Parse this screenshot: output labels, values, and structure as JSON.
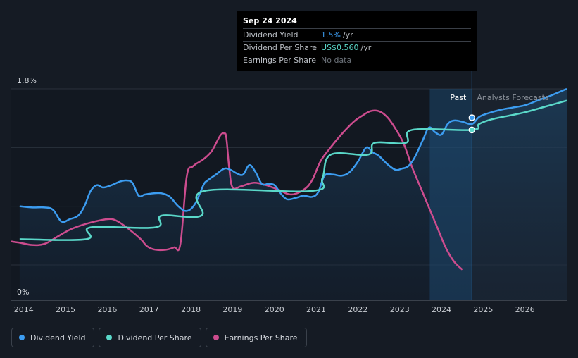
{
  "tooltip": {
    "date": "Sep 24 2024",
    "rows": [
      {
        "label": "Dividend Yield",
        "value": "1.5%",
        "unit": "/yr"
      },
      {
        "label": "Dividend Per Share",
        "value": "US$0.560",
        "unit": "/yr"
      },
      {
        "label": "Earnings Per Share",
        "value": "No data",
        "unit": ""
      }
    ]
  },
  "regions": {
    "past": "Past",
    "forecast": "Analysts Forecasts"
  },
  "legend": [
    {
      "label": "Dividend Yield",
      "color": "#3c9cf0"
    },
    {
      "label": "Dividend Per Share",
      "color": "#5ad8c9"
    },
    {
      "label": "Earnings Per Share",
      "color": "#cc4c8e"
    }
  ],
  "chart_data": {
    "type": "line",
    "title": "",
    "xlabel": "",
    "ylabel": "",
    "xlim": [
      2013.7,
      2027.0
    ],
    "ylim": [
      0,
      1.8
    ],
    "y_tick_labels": [
      "0%",
      "1.8%"
    ],
    "x_ticks": [
      2014,
      2015,
      2016,
      2017,
      2018,
      2019,
      2020,
      2021,
      2022,
      2023,
      2024,
      2025,
      2026
    ],
    "x_tick_labels": [
      "2014",
      "2015",
      "2016",
      "2017",
      "2018",
      "2019",
      "2020",
      "2021",
      "2022",
      "2023",
      "2024",
      "2025",
      "2026"
    ],
    "past_start": 2023.72,
    "present": 2024.73,
    "colors": {
      "yield": "#3c9cf0",
      "dps": "#5ad8c9",
      "eps": "#cc4c8e"
    },
    "series": [
      {
        "name": "Dividend Yield",
        "key": "yield",
        "x": [
          2013.9,
          2014.2,
          2014.5,
          2014.7,
          2014.9,
          2015.1,
          2015.3,
          2015.45,
          2015.6,
          2015.75,
          2015.9,
          2016.1,
          2016.3,
          2016.45,
          2016.6,
          2016.75,
          2016.9,
          2017.1,
          2017.3,
          2017.5,
          2017.7,
          2017.9,
          2018.1,
          2018.3,
          2018.4,
          2018.6,
          2018.8,
          2018.95,
          2019.1,
          2019.25,
          2019.4,
          2019.55,
          2019.7,
          2019.85,
          2020.0,
          2020.15,
          2020.3,
          2020.5,
          2020.7,
          2020.9,
          2021.05,
          2021.2,
          2021.4,
          2021.6,
          2021.8,
          2022.0,
          2022.2,
          2022.35,
          2022.5,
          2022.7,
          2022.9,
          2023.05,
          2023.2,
          2023.35,
          2023.55,
          2023.7,
          2023.85,
          2024.0,
          2024.15,
          2024.3,
          2024.5,
          2024.73,
          2024.9,
          2025.1,
          2025.4,
          2025.7,
          2026.0,
          2026.3,
          2026.6,
          2027.0
        ],
        "y": [
          0.8,
          0.79,
          0.79,
          0.77,
          0.67,
          0.69,
          0.72,
          0.8,
          0.93,
          0.98,
          0.96,
          0.98,
          1.01,
          1.02,
          1.0,
          0.89,
          0.9,
          0.91,
          0.91,
          0.88,
          0.8,
          0.76,
          0.82,
          0.98,
          1.02,
          1.07,
          1.12,
          1.11,
          1.08,
          1.07,
          1.15,
          1.09,
          0.99,
          0.99,
          0.98,
          0.91,
          0.86,
          0.87,
          0.89,
          0.88,
          0.92,
          1.06,
          1.07,
          1.06,
          1.09,
          1.18,
          1.3,
          1.26,
          1.23,
          1.16,
          1.11,
          1.12,
          1.14,
          1.21,
          1.36,
          1.47,
          1.43,
          1.41,
          1.5,
          1.53,
          1.52,
          1.5,
          1.56,
          1.59,
          1.62,
          1.64,
          1.66,
          1.7,
          1.74,
          1.8
        ]
      },
      {
        "name": "Dividend Per Share",
        "key": "dps",
        "x": [
          2013.9,
          2015.5,
          2015.6,
          2017.15,
          2017.3,
          2018.25,
          2018.32,
          2020.9,
          2021.15,
          2021.35,
          2022.25,
          2022.4,
          2023.15,
          2023.3,
          2024.73,
          2024.9,
          2025.2,
          2025.6,
          2026.0,
          2026.5,
          2027.0
        ],
        "y": [
          0.52,
          0.52,
          0.62,
          0.62,
          0.72,
          0.72,
          0.93,
          0.93,
          1.04,
          1.24,
          1.24,
          1.34,
          1.34,
          1.45,
          1.45,
          1.5,
          1.54,
          1.57,
          1.6,
          1.65,
          1.7
        ]
      },
      {
        "name": "Earnings Per Share",
        "key": "eps",
        "x": [
          2013.7,
          2013.9,
          2014.2,
          2014.5,
          2014.8,
          2015.1,
          2015.4,
          2015.7,
          2016.0,
          2016.2,
          2016.5,
          2016.8,
          2016.95,
          2017.15,
          2017.4,
          2017.6,
          2017.75,
          2017.9,
          2018.05,
          2018.3,
          2018.5,
          2018.7,
          2018.8,
          2018.85,
          2018.92,
          2019.0,
          2019.2,
          2019.5,
          2019.8,
          2020.1,
          2020.4,
          2020.7,
          2020.9,
          2021.1,
          2021.3,
          2021.6,
          2021.9,
          2022.1,
          2022.3,
          2022.5,
          2022.7,
          2022.9,
          2023.1,
          2023.3,
          2023.5,
          2023.7,
          2023.9,
          2024.1,
          2024.3,
          2024.5
        ],
        "y": [
          0.5,
          0.49,
          0.47,
          0.48,
          0.54,
          0.6,
          0.64,
          0.67,
          0.69,
          0.68,
          0.61,
          0.52,
          0.46,
          0.43,
          0.43,
          0.45,
          0.48,
          1.05,
          1.14,
          1.2,
          1.27,
          1.4,
          1.42,
          1.38,
          1.12,
          0.96,
          0.97,
          1.0,
          0.98,
          0.94,
          0.9,
          0.94,
          1.02,
          1.18,
          1.28,
          1.41,
          1.52,
          1.57,
          1.61,
          1.61,
          1.56,
          1.46,
          1.33,
          1.13,
          0.96,
          0.79,
          0.62,
          0.45,
          0.33,
          0.26
        ]
      }
    ]
  }
}
